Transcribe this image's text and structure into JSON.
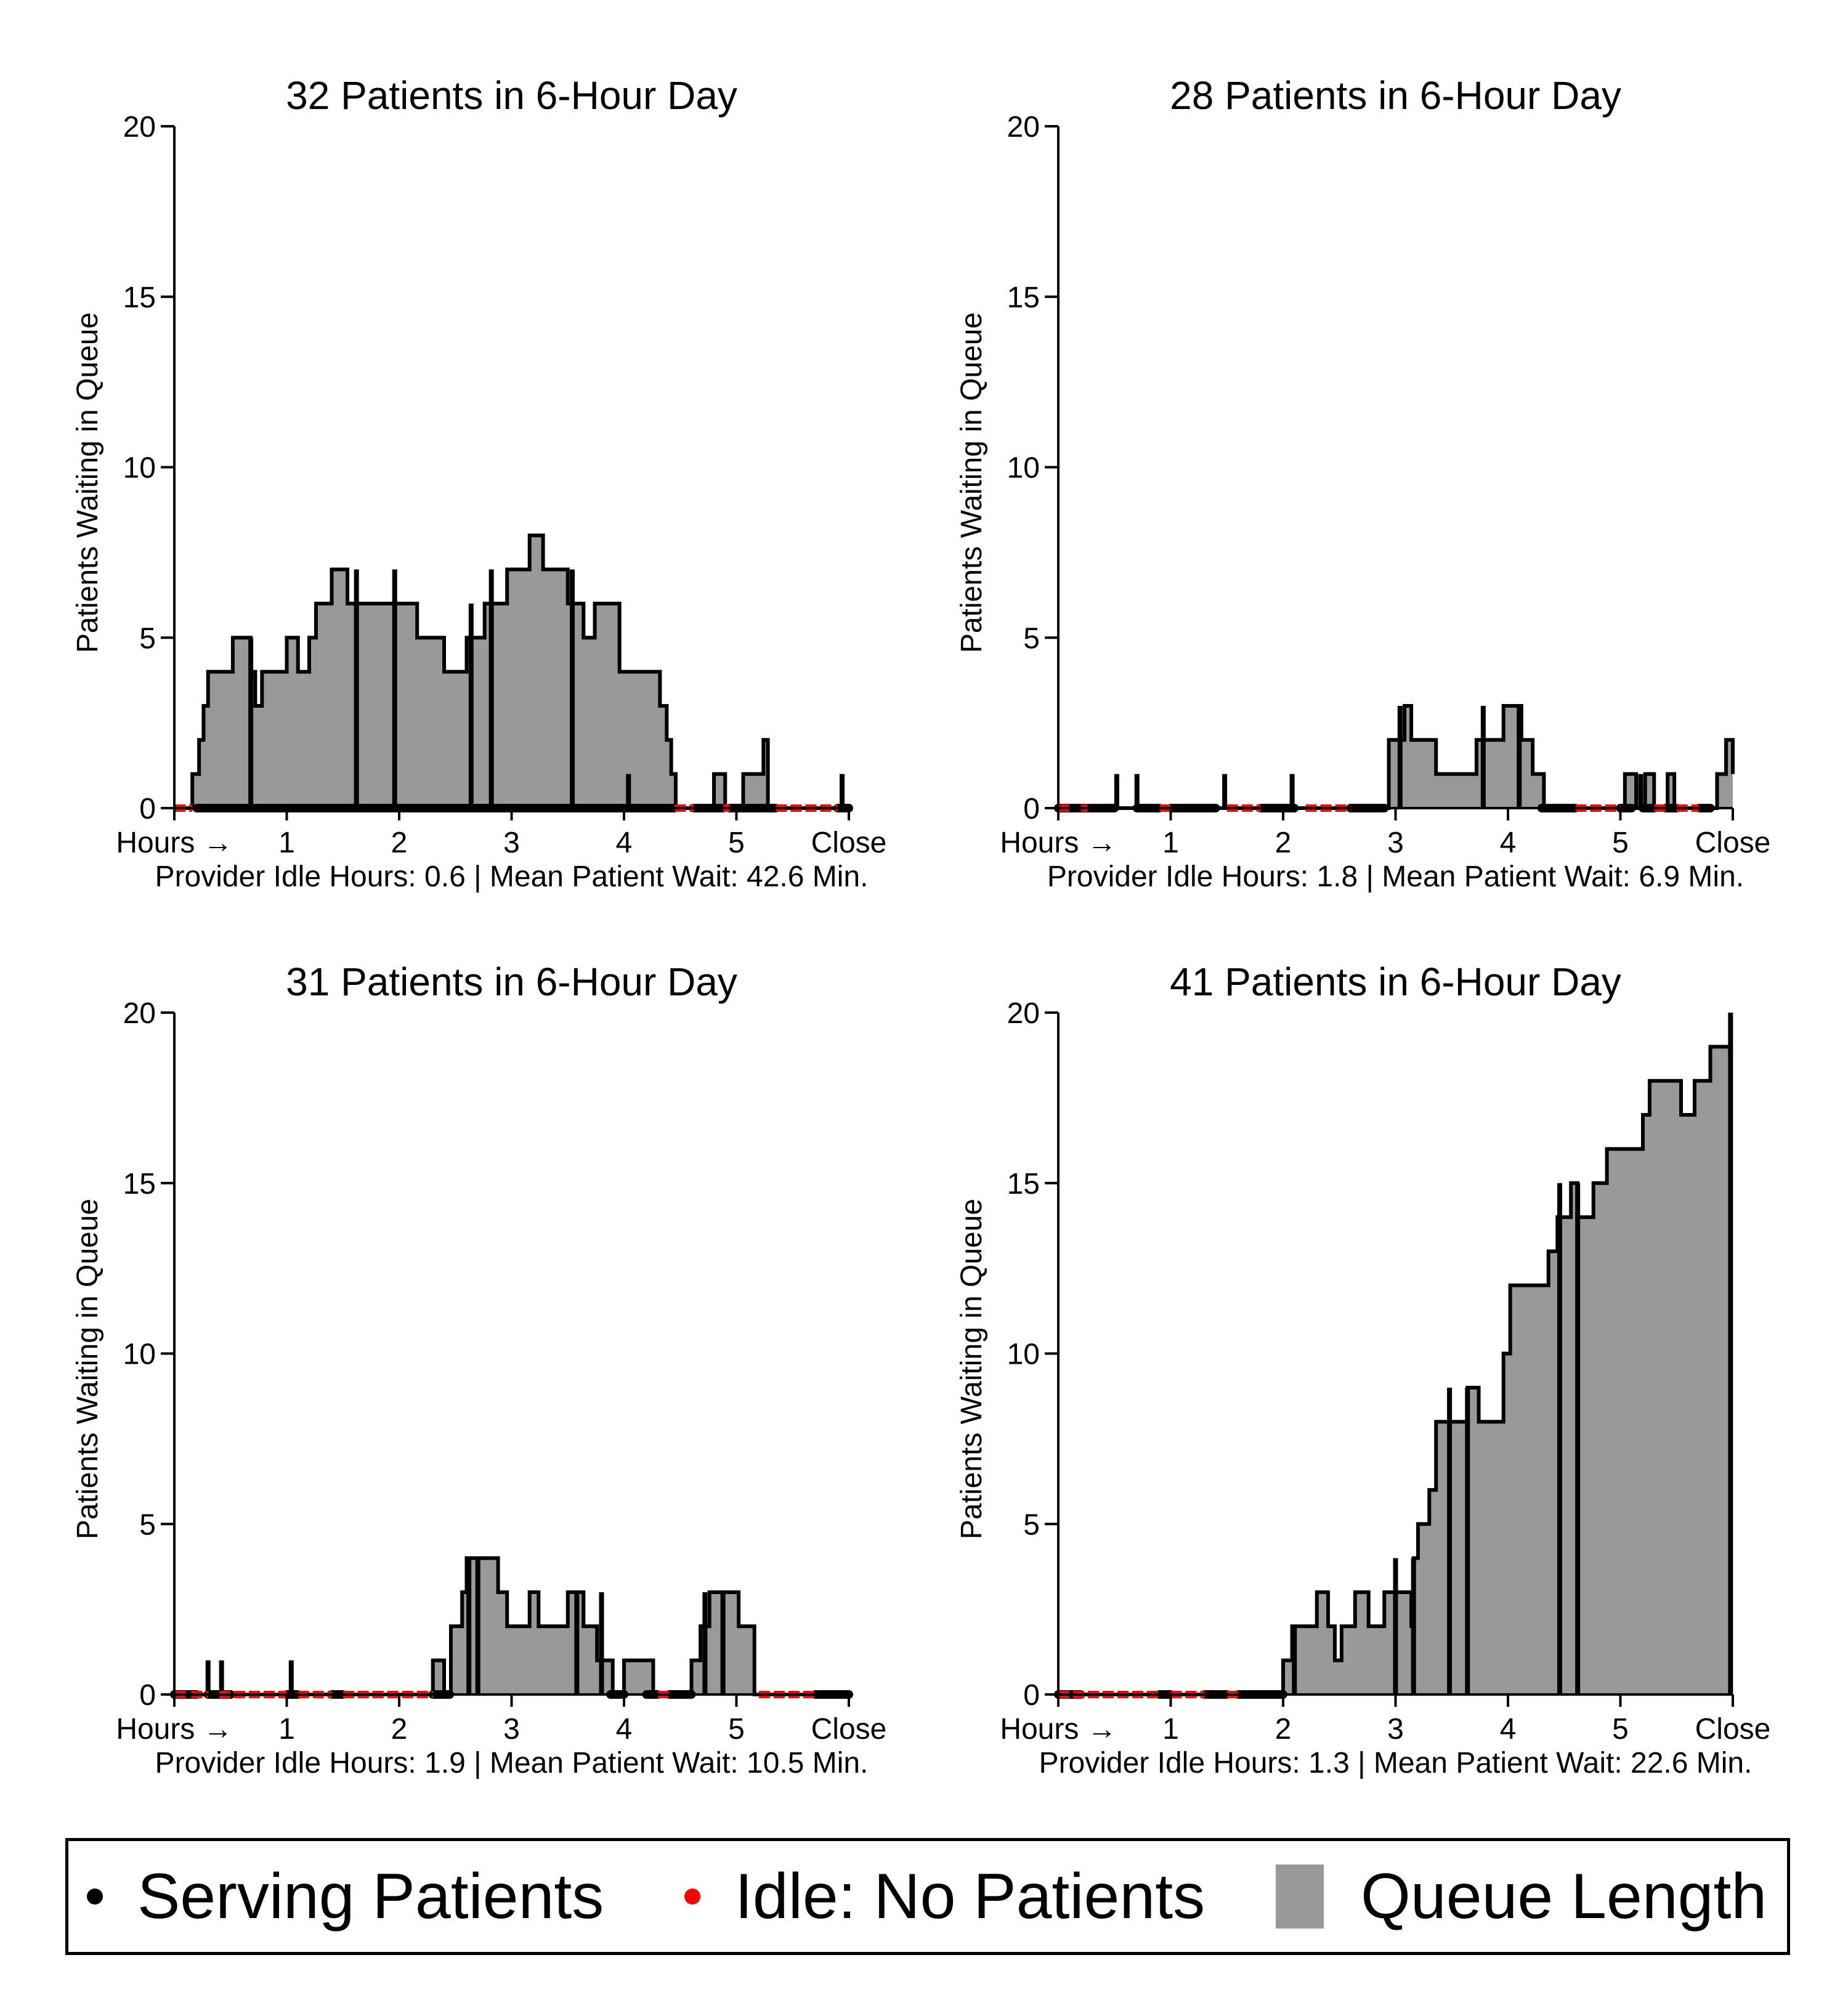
{
  "colors": {
    "queue": "#999999",
    "serving": "#000000",
    "idle": "#ff0000"
  },
  "chart_data": [
    {
      "type": "area",
      "title": "32 Patients in 6-Hour Day",
      "ylabel": "Patients Waiting in Queue",
      "footer": "Provider Idle Hours: 0.6 | Mean Patient Wait: 42.6 Min.",
      "xticks": [
        "Hours →",
        "1",
        "2",
        "3",
        "4",
        "5",
        "Close"
      ],
      "yticks": [
        "0",
        "5",
        "10",
        "15",
        "20"
      ],
      "xlim": [
        0,
        6
      ],
      "ylim": [
        0,
        20
      ],
      "queue_steps": [
        [
          0,
          0
        ],
        [
          0.16,
          1
        ],
        [
          0.22,
          2
        ],
        [
          0.26,
          3
        ],
        [
          0.3,
          4
        ],
        [
          0.52,
          5
        ],
        [
          0.68,
          4
        ],
        [
          0.72,
          3
        ],
        [
          0.78,
          4
        ],
        [
          1,
          5
        ],
        [
          1.1,
          4
        ],
        [
          1.2,
          5
        ],
        [
          1.26,
          6
        ],
        [
          1.4,
          7
        ],
        [
          1.54,
          6
        ],
        [
          2.16,
          5
        ],
        [
          2.4,
          4
        ],
        [
          2.6,
          5
        ],
        [
          2.76,
          6
        ],
        [
          2.96,
          7
        ],
        [
          3.16,
          8
        ],
        [
          3.28,
          7
        ],
        [
          3.5,
          6
        ],
        [
          3.64,
          5
        ],
        [
          3.74,
          6
        ],
        [
          3.96,
          4
        ],
        [
          4.32,
          3
        ],
        [
          4.38,
          2
        ],
        [
          4.42,
          1
        ],
        [
          4.46,
          0
        ],
        [
          4.8,
          1
        ],
        [
          4.9,
          0
        ],
        [
          5.06,
          1
        ],
        [
          5.24,
          2
        ],
        [
          5.28,
          0
        ],
        [
          6,
          0
        ]
      ],
      "serving_segments": [
        [
          0.2,
          4.45
        ],
        [
          4.62,
          4.88
        ],
        [
          4.94,
          5.35
        ],
        [
          5.9,
          6
        ]
      ],
      "idle_segments": [
        [
          0,
          0.16
        ],
        [
          4.45,
          4.62
        ],
        [
          4.88,
          4.94
        ],
        [
          5.35,
          5.9
        ]
      ],
      "ticks_marks": [
        [
          0.68,
          5
        ],
        [
          1.62,
          7
        ],
        [
          1.96,
          7
        ],
        [
          2.64,
          6
        ],
        [
          2.82,
          7
        ],
        [
          3.54,
          7
        ],
        [
          4.04,
          1
        ],
        [
          5.94,
          1
        ]
      ]
    },
    {
      "type": "area",
      "title": "28 Patients in 6-Hour Day",
      "ylabel": "Patients Waiting in Queue",
      "footer": "Provider Idle Hours: 1.8 | Mean Patient Wait: 6.9 Min.",
      "xticks": [
        "Hours →",
        "1",
        "2",
        "3",
        "4",
        "5",
        "Close"
      ],
      "yticks": [
        "0",
        "5",
        "10",
        "15",
        "20"
      ],
      "xlim": [
        0,
        6
      ],
      "ylim": [
        0,
        20
      ],
      "queue_steps": [
        [
          0,
          0
        ],
        [
          2.94,
          2
        ],
        [
          3.08,
          3
        ],
        [
          3.14,
          2
        ],
        [
          3.36,
          1
        ],
        [
          3.72,
          2
        ],
        [
          3.96,
          3
        ],
        [
          4.12,
          2
        ],
        [
          4.22,
          1
        ],
        [
          4.32,
          0
        ],
        [
          5.04,
          1
        ],
        [
          5.14,
          0
        ],
        [
          5.22,
          1
        ],
        [
          5.3,
          0
        ],
        [
          5.42,
          1
        ],
        [
          5.48,
          0
        ],
        [
          5.86,
          1
        ],
        [
          5.94,
          2
        ],
        [
          6.06,
          1
        ],
        [
          6.2,
          1
        ]
      ],
      "serving_segments": [
        [
          0,
          0.5
        ],
        [
          0.7,
          0.9
        ],
        [
          1.0,
          1.4
        ],
        [
          1.8,
          2.1
        ],
        [
          2.6,
          2.9
        ],
        [
          4.3,
          4.6
        ],
        [
          5.0,
          5.1
        ],
        [
          5.2,
          5.3
        ],
        [
          5.4,
          5.5
        ],
        [
          5.7,
          5.8
        ]
      ],
      "idle_segments": [
        [
          0,
          0.12
        ],
        [
          0.2,
          0.26
        ],
        [
          0.9,
          1.0
        ],
        [
          1.5,
          1.8
        ],
        [
          2.2,
          2.6
        ],
        [
          4.6,
          5.0
        ],
        [
          5.3,
          5.4
        ],
        [
          5.5,
          5.7
        ]
      ],
      "ticks_marks": [
        [
          0.52,
          1
        ],
        [
          0.7,
          1
        ],
        [
          1.48,
          1
        ],
        [
          2.08,
          1
        ],
        [
          3.04,
          3
        ],
        [
          3.78,
          3
        ],
        [
          4.1,
          3
        ],
        [
          5.18,
          1
        ]
      ]
    },
    {
      "type": "area",
      "title": "31 Patients in 6-Hour Day",
      "ylabel": "Patients Waiting in Queue",
      "footer": "Provider Idle Hours: 1.9 | Mean Patient Wait: 10.5 Min.",
      "xticks": [
        "Hours →",
        "1",
        "2",
        "3",
        "4",
        "5",
        "Close"
      ],
      "yticks": [
        "0",
        "5",
        "10",
        "15",
        "20"
      ],
      "xlim": [
        0,
        6
      ],
      "ylim": [
        0,
        20
      ],
      "queue_steps": [
        [
          0,
          0
        ],
        [
          2.3,
          1
        ],
        [
          2.4,
          0
        ],
        [
          2.46,
          2
        ],
        [
          2.56,
          3
        ],
        [
          2.6,
          4
        ],
        [
          2.88,
          3
        ],
        [
          2.96,
          2
        ],
        [
          3.16,
          3
        ],
        [
          3.24,
          2
        ],
        [
          3.5,
          3
        ],
        [
          3.64,
          2
        ],
        [
          3.76,
          1
        ],
        [
          3.9,
          0
        ],
        [
          4.0,
          1
        ],
        [
          4.26,
          0
        ],
        [
          4.6,
          1
        ],
        [
          4.68,
          2
        ],
        [
          4.76,
          3
        ],
        [
          5.02,
          2
        ],
        [
          5.16,
          0
        ],
        [
          6,
          0
        ]
      ],
      "serving_segments": [
        [
          0,
          0.2
        ],
        [
          0.3,
          0.5
        ],
        [
          1.0,
          1.1
        ],
        [
          1.4,
          1.5
        ],
        [
          2.3,
          2.45
        ],
        [
          3.88,
          4.0
        ],
        [
          4.2,
          4.3
        ],
        [
          4.4,
          4.6
        ],
        [
          5.7,
          6
        ]
      ],
      "idle_segments": [
        [
          0,
          0.1
        ],
        [
          0.15,
          0.3
        ],
        [
          0.4,
          1.0
        ],
        [
          1.1,
          1.4
        ],
        [
          1.5,
          2.3
        ],
        [
          4.3,
          4.4
        ],
        [
          5.2,
          5.7
        ]
      ],
      "ticks_marks": [
        [
          0.3,
          1
        ],
        [
          0.42,
          1
        ],
        [
          1.04,
          1
        ],
        [
          2.62,
          4
        ],
        [
          2.7,
          4
        ],
        [
          3.58,
          3
        ],
        [
          3.8,
          3
        ],
        [
          4.72,
          3
        ],
        [
          4.88,
          3
        ]
      ]
    },
    {
      "type": "area",
      "title": "41 Patients in 6-Hour Day",
      "ylabel": "Patients Waiting in Queue",
      "footer": "Provider Idle Hours: 1.3 | Mean Patient Wait: 22.6 Min.",
      "xticks": [
        "Hours →",
        "1",
        "2",
        "3",
        "4",
        "5",
        "Close"
      ],
      "yticks": [
        "0",
        "5",
        "10",
        "15",
        "20"
      ],
      "xlim": [
        0,
        6
      ],
      "ylim": [
        0,
        20
      ],
      "queue_steps": [
        [
          0,
          0
        ],
        [
          2.0,
          1
        ],
        [
          2.08,
          2
        ],
        [
          2.3,
          3
        ],
        [
          2.4,
          2
        ],
        [
          2.46,
          1
        ],
        [
          2.52,
          2
        ],
        [
          2.64,
          3
        ],
        [
          2.76,
          2
        ],
        [
          2.9,
          3
        ],
        [
          3.14,
          2
        ],
        [
          3.16,
          4
        ],
        [
          3.2,
          5
        ],
        [
          3.3,
          6
        ],
        [
          3.36,
          8
        ],
        [
          3.64,
          9
        ],
        [
          3.74,
          8
        ],
        [
          3.96,
          10
        ],
        [
          4.02,
          12
        ],
        [
          4.36,
          13
        ],
        [
          4.44,
          14
        ],
        [
          4.56,
          15
        ],
        [
          4.62,
          14
        ],
        [
          4.76,
          15
        ],
        [
          4.88,
          16
        ],
        [
          5.2,
          17
        ],
        [
          5.26,
          18
        ],
        [
          5.54,
          17
        ],
        [
          5.66,
          18
        ],
        [
          5.8,
          19
        ],
        [
          6.0,
          19
        ]
      ],
      "serving_segments": [
        [
          0,
          0.2
        ],
        [
          0.9,
          1.0
        ],
        [
          1.3,
          1.5
        ],
        [
          1.6,
          2.0
        ]
      ],
      "idle_segments": [
        [
          0,
          0.9
        ],
        [
          1.0,
          1.3
        ],
        [
          1.5,
          1.6
        ]
      ],
      "ticks_marks": [
        [
          2.1,
          2
        ],
        [
          3.0,
          4
        ],
        [
          3.16,
          4
        ],
        [
          3.48,
          9
        ],
        [
          3.64,
          9
        ],
        [
          4.46,
          15
        ],
        [
          4.62,
          15
        ],
        [
          5.98,
          20
        ]
      ]
    }
  ],
  "legend": [
    {
      "label": "Serving Patients",
      "marker": "dot",
      "color": "#000000"
    },
    {
      "label": "Idle: No Patients",
      "marker": "dot",
      "color": "#ff0000"
    },
    {
      "label": "Queue Length",
      "marker": "square",
      "color": "#999999"
    }
  ]
}
